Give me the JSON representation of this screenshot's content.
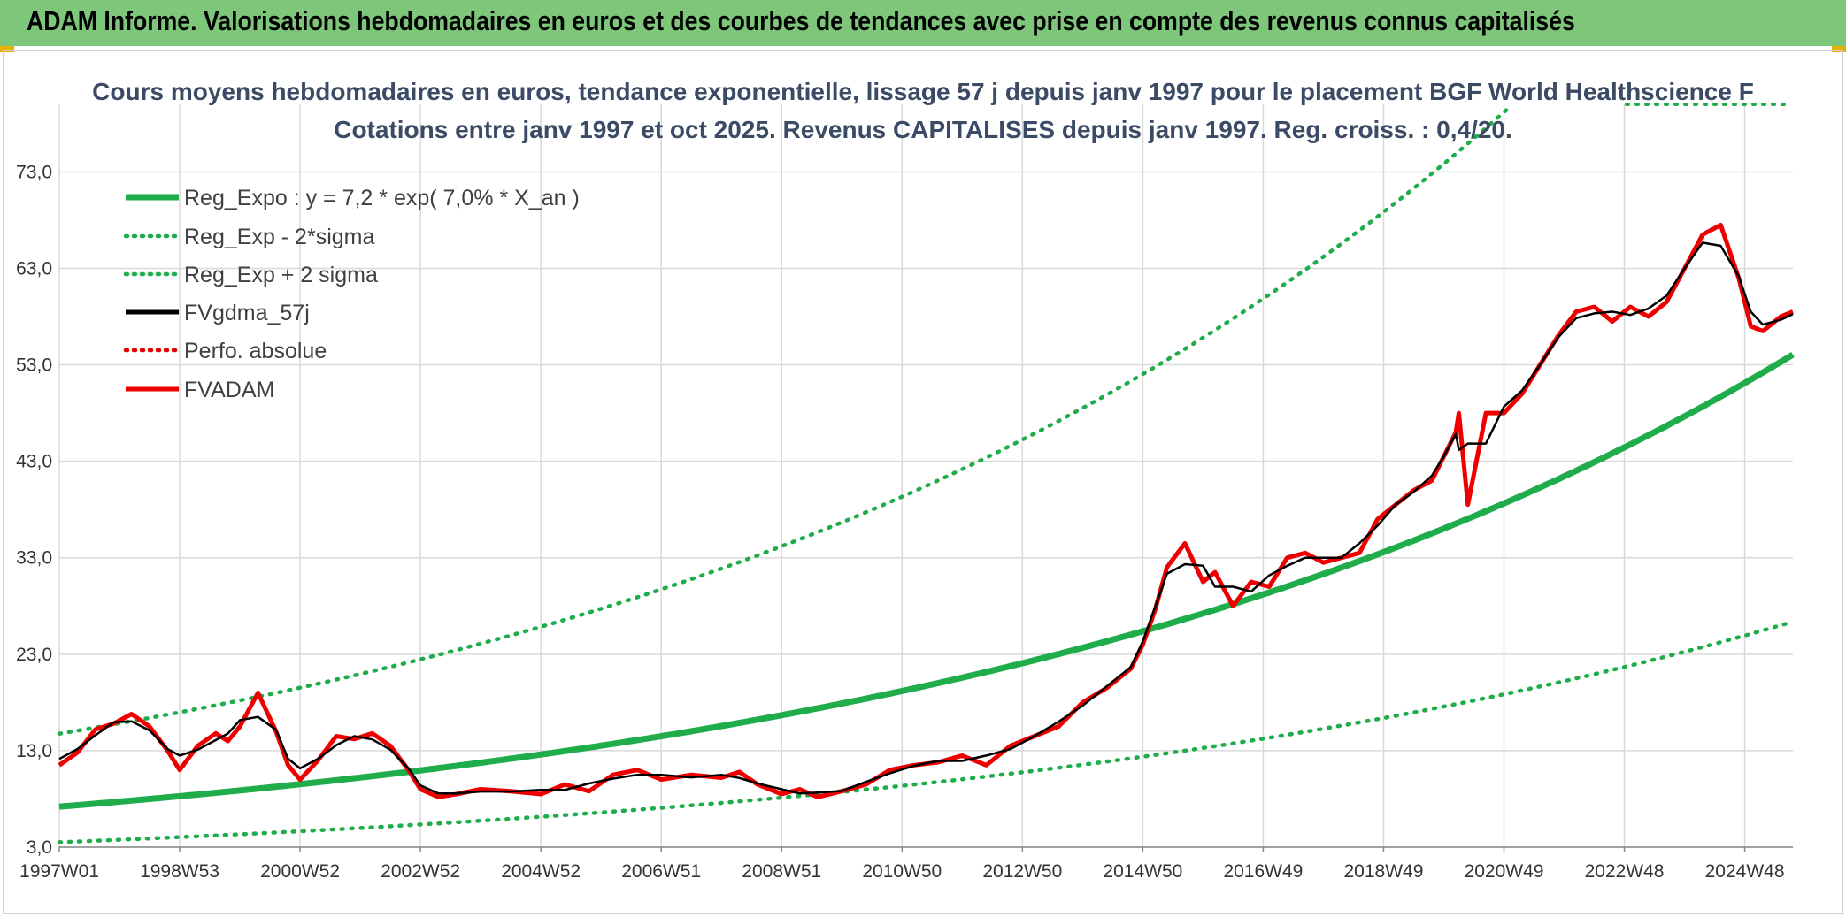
{
  "banner": {
    "title": "ADAM Informe. Valorisations hebdomadaires en euros et des courbes de tendances avec prise en compte des revenus connus capitalisés"
  },
  "chart_data": {
    "type": "line",
    "title": "Cours moyens hebdomadaires en euros, tendance exponentielle, lissage 57 j depuis janv 1997 pour le placement BGF World Healthscience F",
    "subtitle": "Cotations entre janv 1997 et oct 2025. Revenus CAPITALISES depuis janv 1997. Reg. croiss. : 0,4/20.",
    "xlabel": "",
    "ylabel": "",
    "ylim": [
      3,
      80
    ],
    "xlim": [
      1997.0,
      2025.8
    ],
    "grid": true,
    "legend_position": "top-left",
    "y_ticks": [
      "3,0",
      "13,0",
      "23,0",
      "33,0",
      "43,0",
      "53,0",
      "63,0",
      "73,0"
    ],
    "y_tick_values": [
      3,
      13,
      23,
      33,
      43,
      53,
      63,
      73
    ],
    "x_ticks": [
      "1997W01",
      "1998W53",
      "2000W52",
      "2002W52",
      "2004W52",
      "2006W51",
      "2008W51",
      "2010W50",
      "2012W50",
      "2014W50",
      "2016W49",
      "2018W49",
      "2020W49",
      "2022W48",
      "2024W48"
    ],
    "x_tick_values": [
      1997,
      1999,
      2001,
      2003,
      2005,
      2007,
      2009,
      2011,
      2013,
      2015,
      2017,
      2019,
      2021,
      2023,
      2025
    ],
    "regression": {
      "a": 7.2,
      "rate": 0.07,
      "sigma_factor": 2.05
    },
    "series": [
      {
        "name": "Reg_Expo : y = 7,2 * exp( 7,0% *  X_an )",
        "color": "#1fad4b",
        "style": "solid"
      },
      {
        "name": "Reg_Exp - 2*sigma",
        "color": "#1fad4b",
        "style": "dotted"
      },
      {
        "name": "Reg_Exp + 2 sigma",
        "color": "#1fad4b",
        "style": "dotted"
      },
      {
        "name": "FVgdma_57j",
        "color": "#000000",
        "style": "solid"
      },
      {
        "name": "Perfo. absolue",
        "color": "#e00000",
        "style": "dotted"
      },
      {
        "name": "FVADAM",
        "color": "#ee0000",
        "style": "solid",
        "x": [
          1997.0,
          1997.3,
          1997.6,
          1997.9,
          1998.2,
          1998.5,
          1998.8,
          1999.0,
          1999.3,
          1999.6,
          1999.8,
          2000.0,
          2000.3,
          2000.6,
          2000.8,
          2001.0,
          2001.3,
          2001.6,
          2001.9,
          2002.2,
          2002.5,
          2002.8,
          2003.0,
          2003.3,
          2003.6,
          2004.0,
          2004.5,
          2005.0,
          2005.4,
          2005.8,
          2006.2,
          2006.6,
          2007.0,
          2007.5,
          2008.0,
          2008.3,
          2008.6,
          2009.0,
          2009.3,
          2009.6,
          2010.0,
          2010.4,
          2010.8,
          2011.2,
          2011.6,
          2012.0,
          2012.4,
          2012.8,
          2013.2,
          2013.6,
          2014.0,
          2014.4,
          2014.8,
          2015.0,
          2015.2,
          2015.4,
          2015.7,
          2016.0,
          2016.2,
          2016.5,
          2016.8,
          2017.1,
          2017.4,
          2017.7,
          2018.0,
          2018.3,
          2018.6,
          2018.9,
          2019.2,
          2019.5,
          2019.8,
          2020.0,
          2020.2,
          2020.25,
          2020.4,
          2020.7,
          2021.0,
          2021.3,
          2021.6,
          2021.9,
          2022.2,
          2022.5,
          2022.8,
          2023.1,
          2023.4,
          2023.7,
          2024.0,
          2024.3,
          2024.6,
          2024.9,
          2025.1,
          2025.3,
          2025.6,
          2025.8
        ],
        "y": [
          11.5,
          12.8,
          15.2,
          15.8,
          16.8,
          15.5,
          13.0,
          11.0,
          13.5,
          14.8,
          14.0,
          15.5,
          19.0,
          15.0,
          11.5,
          10.0,
          12.0,
          14.5,
          14.2,
          14.8,
          13.5,
          11.0,
          9.0,
          8.2,
          8.5,
          9.0,
          8.8,
          8.5,
          9.5,
          8.8,
          10.5,
          11.0,
          10.0,
          10.5,
          10.2,
          10.8,
          9.5,
          8.5,
          9.0,
          8.2,
          8.8,
          9.5,
          11.0,
          11.5,
          11.8,
          12.5,
          11.5,
          13.5,
          14.5,
          15.5,
          18.0,
          19.5,
          21.5,
          24.0,
          27.5,
          32.0,
          34.5,
          30.5,
          31.5,
          28.0,
          30.5,
          30.0,
          33.0,
          33.5,
          32.5,
          33.0,
          33.5,
          37.0,
          38.5,
          40.0,
          41.0,
          43.5,
          46.0,
          48.0,
          38.5,
          48.0,
          48.0,
          50.0,
          53.0,
          56.0,
          58.5,
          59.0,
          57.5,
          59.0,
          58.0,
          59.5,
          63.0,
          66.5,
          67.5,
          62.0,
          57.0,
          56.5,
          58.0,
          58.5
        ]
      }
    ]
  }
}
